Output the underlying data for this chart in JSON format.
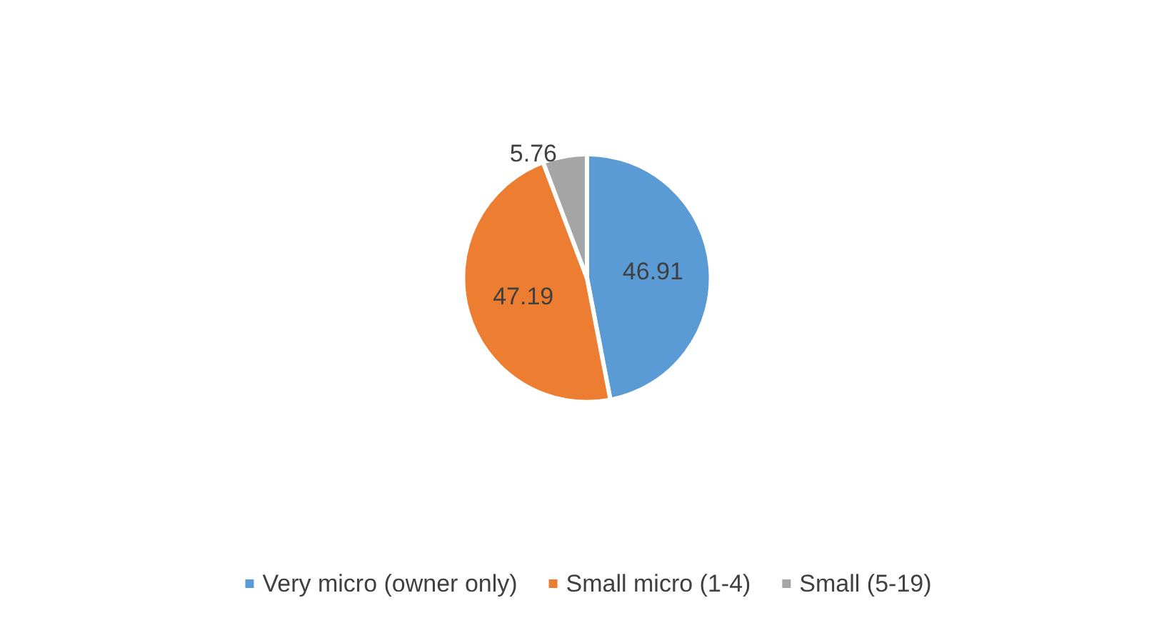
{
  "chart_data": {
    "type": "pie",
    "categories": [
      "Very micro (owner only)",
      "Small micro (1-4)",
      "Small (5-19)"
    ],
    "values": [
      46.91,
      47.19,
      5.76
    ],
    "colors": [
      "#5b9bd5",
      "#ed7d31",
      "#a5a5a5"
    ],
    "data_labels": true,
    "legend": "bottom"
  }
}
